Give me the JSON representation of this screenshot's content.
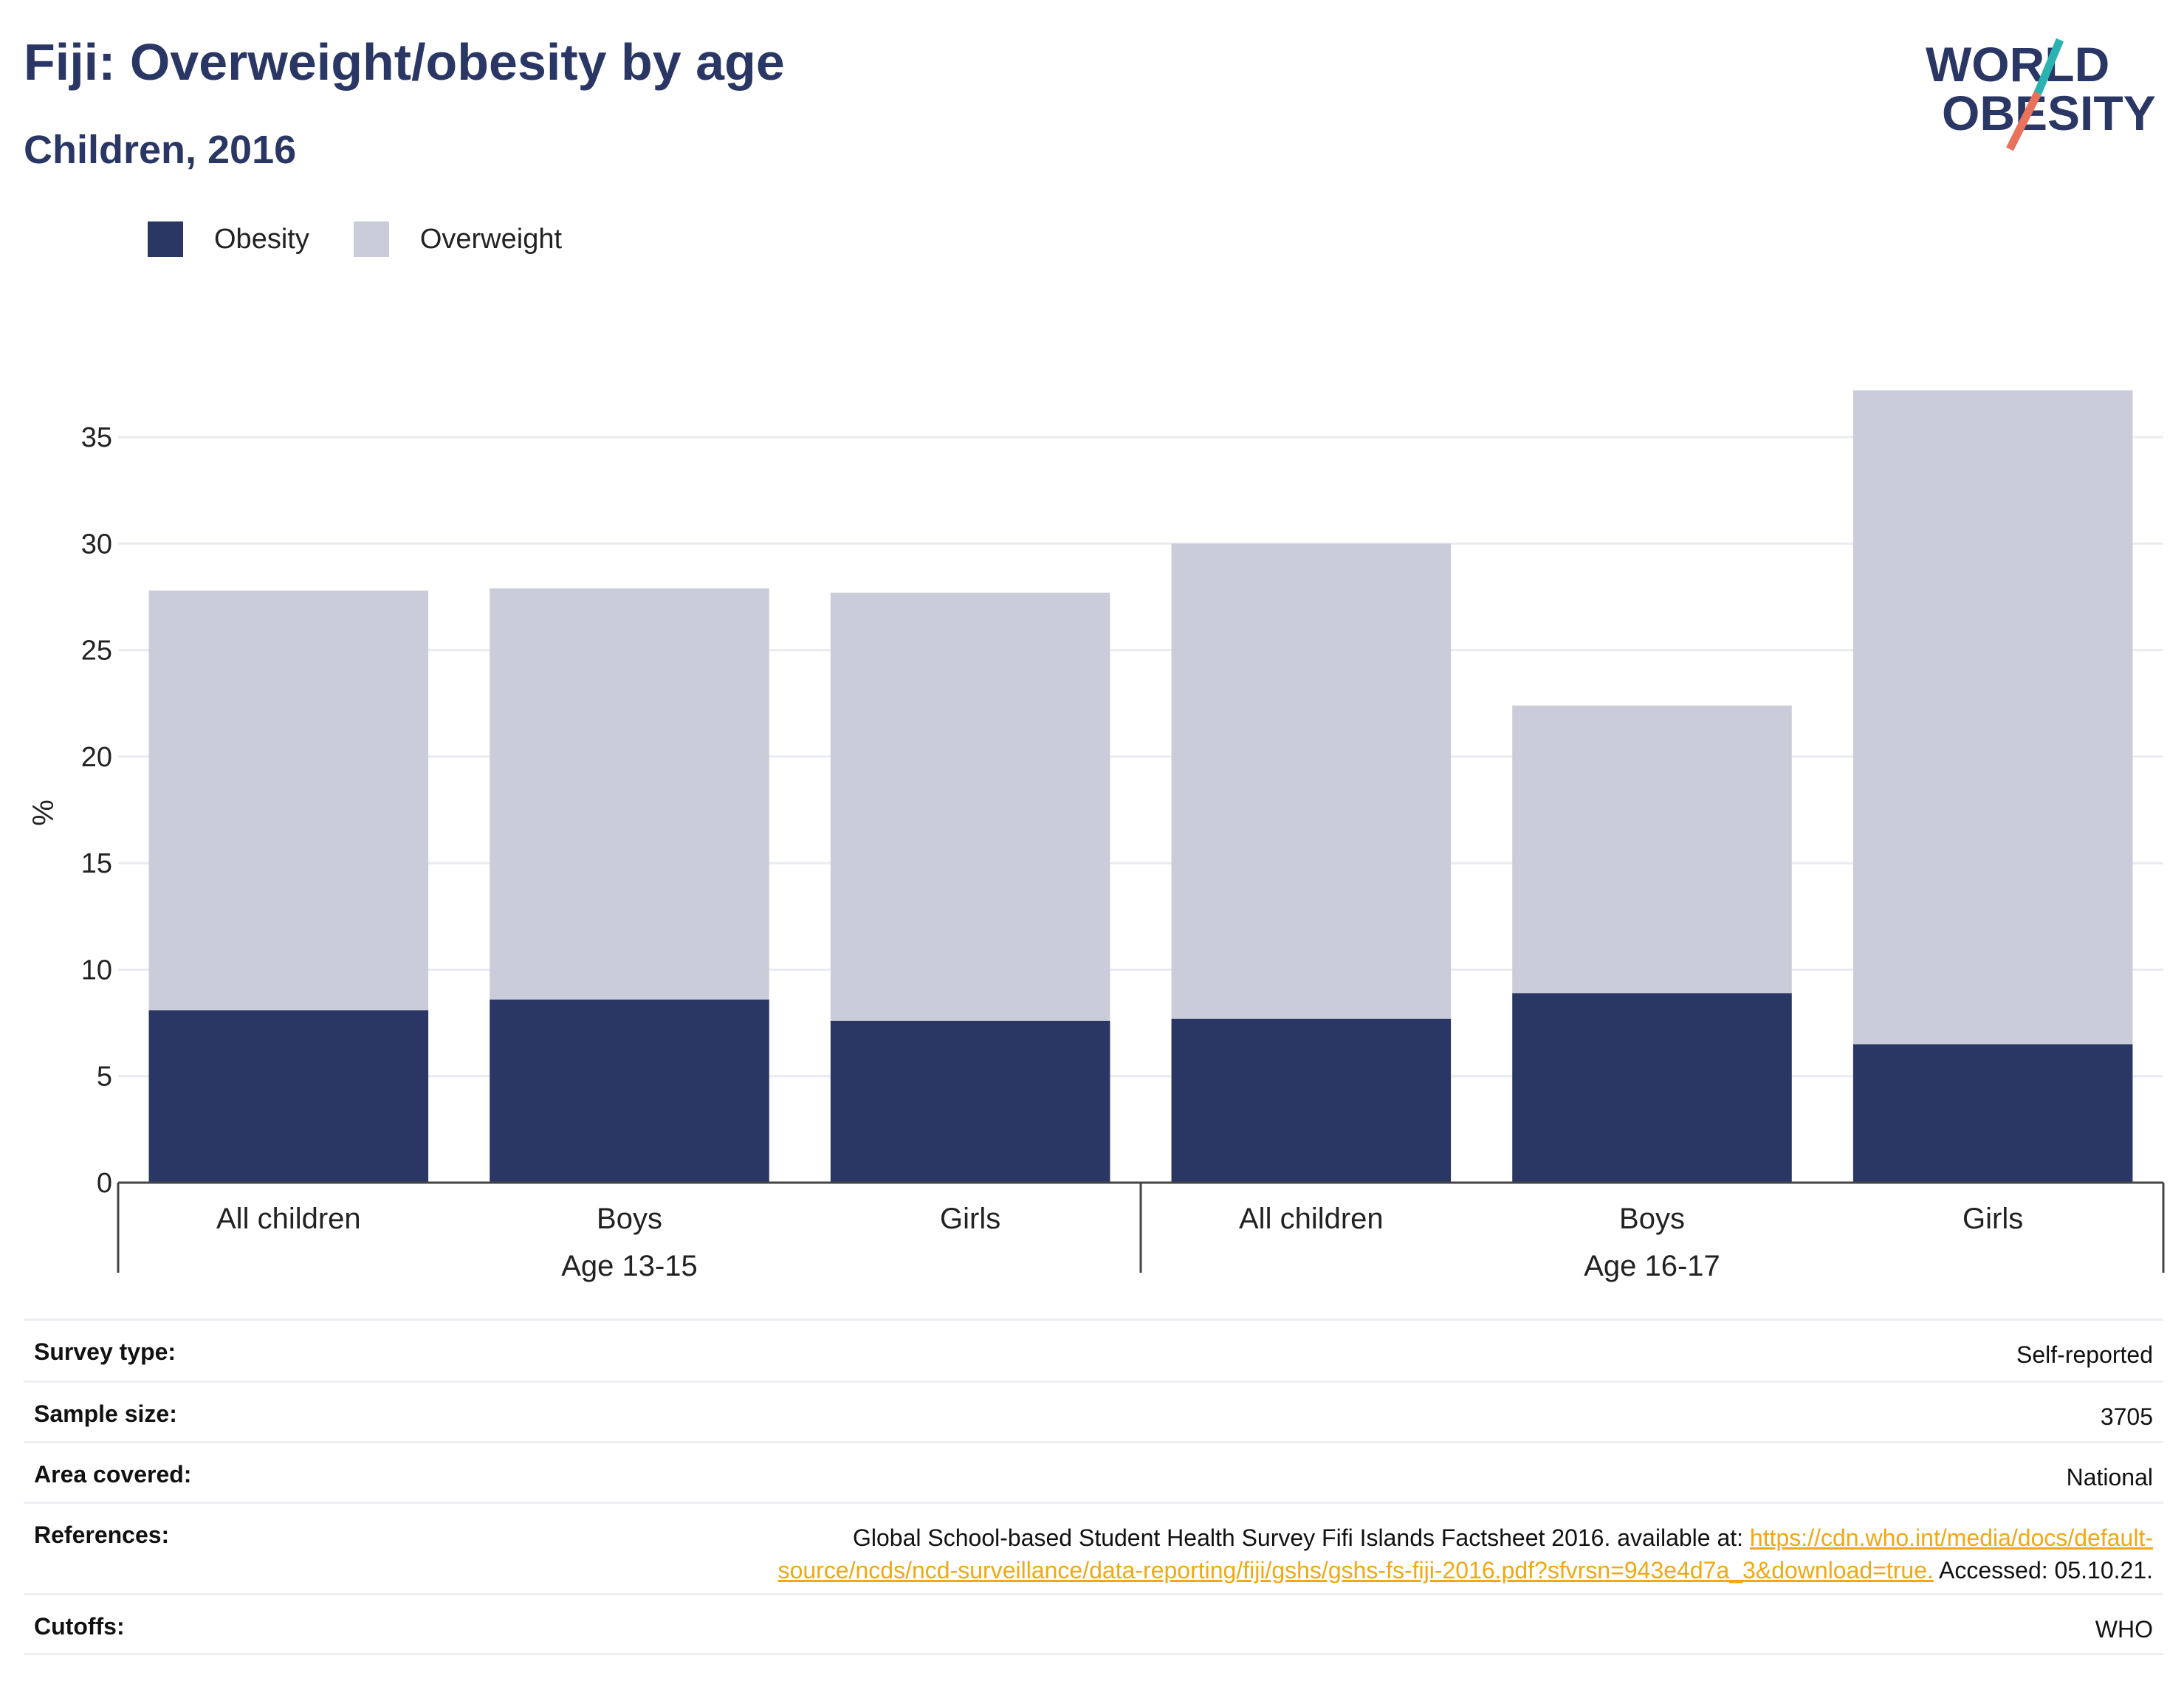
{
  "header": {
    "title": "Fiji: Overweight/obesity by age",
    "subtitle": "Children, 2016"
  },
  "logo": {
    "line1": "WORLD",
    "line2": "OBESITY",
    "colors": {
      "text": "#2a3765",
      "slash_top": "#2ab3b0",
      "slash_bottom": "#e8735a"
    }
  },
  "colors": {
    "obesity": "#2a3765",
    "overweight": "#cacdd9",
    "title": "#2a3765",
    "link": "#f0a814"
  },
  "chart_data": {
    "type": "bar",
    "stacked": true,
    "ylabel": "%",
    "xlabel": "",
    "ylim": [
      0,
      37.5
    ],
    "yticks": [
      0,
      5,
      10,
      15,
      20,
      25,
      30,
      35
    ],
    "grid": true,
    "legend_position": "top-left",
    "groups": [
      {
        "label": "Age 13-15",
        "categories": [
          "All children",
          "Boys",
          "Girls"
        ]
      },
      {
        "label": "Age 16-17",
        "categories": [
          "All children",
          "Boys",
          "Girls"
        ]
      }
    ],
    "series": [
      {
        "name": "Obesity",
        "values": [
          8.1,
          8.6,
          7.6,
          7.7,
          8.9,
          6.5
        ]
      },
      {
        "name": "Overweight",
        "values": [
          19.7,
          19.3,
          20.1,
          22.3,
          13.5,
          30.7
        ]
      }
    ]
  },
  "meta": {
    "survey_type": {
      "label": "Survey type:",
      "value": "Self-reported"
    },
    "sample_size": {
      "label": "Sample size:",
      "value": "3705"
    },
    "area_covered": {
      "label": "Area covered:",
      "value": "National"
    },
    "references": {
      "label": "References:",
      "text_before": "Global School-based Student Health Survey Fifi Islands Factsheet 2016. available at: ",
      "link_line1": "https://cdn.who.int/media/docs/default-",
      "link_line2": "source/ncds/ncd-surveillance/data-reporting/fiji/gshs/gshs-fs-fiji-2016.pdf?sfvrsn=943e4d7a_3&download=true.",
      "text_after": " Accessed: 05.10.21."
    },
    "cutoffs": {
      "label": "Cutoffs:",
      "value": "WHO"
    }
  }
}
